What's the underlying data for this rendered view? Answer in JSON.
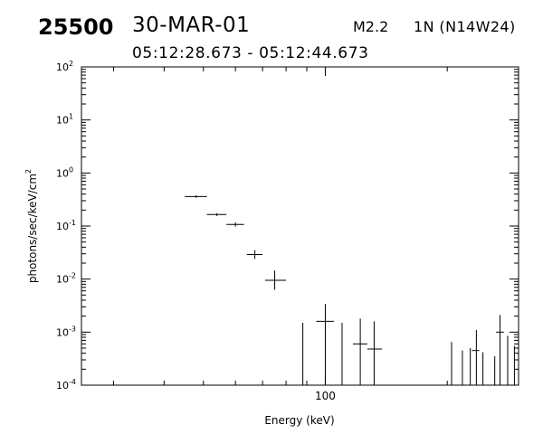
{
  "header": {
    "event_id": "25500",
    "date": "30-MAR-01",
    "flare_class": "M2.2",
    "location": "1N (N14W24)",
    "time_range": "05:12:28.673 - 05:12:44.673"
  },
  "chart_data": {
    "type": "scatter",
    "title": "",
    "xlabel": "Energy (keV)",
    "ylabel": "photons/sec/keV/cm",
    "ylabel_superscript": "2",
    "xscale": "log",
    "yscale": "log",
    "xlim": [
      25,
      300
    ],
    "ylim": [
      0.0001,
      100
    ],
    "grid": false,
    "legend": "none",
    "x_tick_labels": [
      {
        "value": 100,
        "label": "100"
      }
    ],
    "y_tick_labels": [
      {
        "value": 100,
        "base": "10",
        "exp": "2"
      },
      {
        "value": 10,
        "base": "10",
        "exp": "1"
      },
      {
        "value": 1,
        "base": "10",
        "exp": "0"
      },
      {
        "value": 0.1,
        "base": "10",
        "exp": "-1"
      },
      {
        "value": 0.01,
        "base": "10",
        "exp": "-2"
      },
      {
        "value": 0.001,
        "base": "10",
        "exp": "-3"
      },
      {
        "value": 0.0001,
        "base": "10",
        "exp": "-4"
      }
    ],
    "points": [
      {
        "x": 48,
        "x_lo": 45,
        "x_hi": 51,
        "y": 0.36,
        "y_lo": 0.34,
        "y_hi": 0.38
      },
      {
        "x": 54,
        "x_lo": 51,
        "x_hi": 57,
        "y": 0.165,
        "y_lo": 0.155,
        "y_hi": 0.175
      },
      {
        "x": 60,
        "x_lo": 57,
        "x_hi": 63,
        "y": 0.107,
        "y_lo": 0.098,
        "y_hi": 0.117
      },
      {
        "x": 67,
        "x_lo": 64,
        "x_hi": 70,
        "y": 0.029,
        "y_lo": 0.024,
        "y_hi": 0.035
      },
      {
        "x": 75,
        "x_lo": 71,
        "x_hi": 80,
        "y": 0.0095,
        "y_lo": 0.0063,
        "y_hi": 0.0145
      },
      {
        "x": 88,
        "x_lo": 88,
        "x_hi": 88,
        "y": 0.00015,
        "y_lo": 0.0001,
        "y_hi": 0.0015
      },
      {
        "x": 100,
        "x_lo": 95,
        "x_hi": 105,
        "y": 0.0016,
        "y_lo": 0.0001,
        "y_hi": 0.0034
      },
      {
        "x": 110,
        "x_lo": 110,
        "x_hi": 110,
        "y": 0.00015,
        "y_lo": 0.0001,
        "y_hi": 0.0015
      },
      {
        "x": 122,
        "x_lo": 117,
        "x_hi": 127,
        "y": 0.0006,
        "y_lo": 0.0001,
        "y_hi": 0.0018
      },
      {
        "x": 132,
        "x_lo": 127,
        "x_hi": 138,
        "y": 0.00048,
        "y_lo": 0.0001,
        "y_hi": 0.0016
      },
      {
        "x": 205,
        "x_lo": 205,
        "x_hi": 205,
        "y": 0.00015,
        "y_lo": 0.0001,
        "y_hi": 0.00065
      },
      {
        "x": 218,
        "x_lo": 218,
        "x_hi": 218,
        "y": 0.00015,
        "y_lo": 0.0001,
        "y_hi": 0.00045
      },
      {
        "x": 228,
        "x_lo": 228,
        "x_hi": 228,
        "y": 0.00015,
        "y_lo": 0.0001,
        "y_hi": 0.0005
      },
      {
        "x": 236,
        "x_lo": 230,
        "x_hi": 240,
        "y": 0.00045,
        "y_lo": 0.0001,
        "y_hi": 0.0011
      },
      {
        "x": 245,
        "x_lo": 245,
        "x_hi": 245,
        "y": 0.00015,
        "y_lo": 0.0001,
        "y_hi": 0.00042
      },
      {
        "x": 262,
        "x_lo": 262,
        "x_hi": 262,
        "y": 0.00015,
        "y_lo": 0.0001,
        "y_hi": 0.00035
      },
      {
        "x": 270,
        "x_lo": 264,
        "x_hi": 276,
        "y": 0.001,
        "y_lo": 0.0001,
        "y_hi": 0.0021
      },
      {
        "x": 282,
        "x_lo": 282,
        "x_hi": 282,
        "y": 0.00015,
        "y_lo": 0.0001,
        "y_hi": 0.00085
      },
      {
        "x": 293,
        "x_lo": 293,
        "x_hi": 293,
        "y": 0.00015,
        "y_lo": 0.0001,
        "y_hi": 0.00055
      }
    ]
  }
}
